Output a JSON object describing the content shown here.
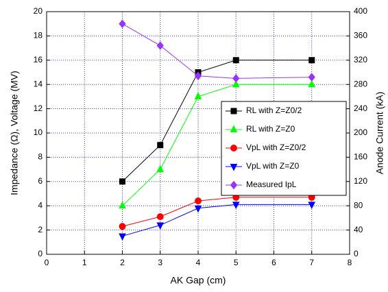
{
  "chart_data": {
    "type": "line",
    "x": [
      2,
      3,
      4,
      5,
      7
    ],
    "xlabel": "AK Gap (cm)",
    "ylabel": "Impedance (Ω), Voltage (MV)",
    "y2label": "Anode Current (kA)",
    "xlim": [
      0,
      8
    ],
    "xticks": [
      0,
      1,
      2,
      3,
      4,
      5,
      6,
      7,
      8
    ],
    "ylim": [
      0,
      20
    ],
    "yticks": [
      0,
      2,
      4,
      6,
      8,
      10,
      12,
      14,
      16,
      18,
      20
    ],
    "y2lim": [
      0,
      400
    ],
    "y2ticks": [
      0,
      40,
      80,
      120,
      160,
      200,
      240,
      280,
      320,
      360,
      400
    ],
    "grid": true,
    "legend": "right",
    "series": [
      {
        "name": "RL with Z=Z0/2",
        "color": "#000000",
        "marker": "square",
        "values": [
          6,
          9,
          15,
          16,
          16
        ]
      },
      {
        "name": "RL with Z=Z0",
        "color": "#00ff00",
        "marker": "triangle-up",
        "values": [
          4,
          7,
          13,
          14,
          14
        ]
      },
      {
        "name": "VpL with Z=Z0/2",
        "color": "#ff0000",
        "marker": "circle",
        "values": [
          2.3,
          3.1,
          4.4,
          4.7,
          4.7
        ]
      },
      {
        "name": "VpL with Z=Z0",
        "color": "#0000ff",
        "marker": "triangle-down",
        "values": [
          1.5,
          2.4,
          3.8,
          4.1,
          4.1
        ]
      },
      {
        "name": "Measured IpL",
        "color": "#9933ff",
        "marker": "diamond",
        "axis": "y2",
        "values": [
          380,
          344,
          294,
          290,
          292
        ]
      }
    ]
  }
}
